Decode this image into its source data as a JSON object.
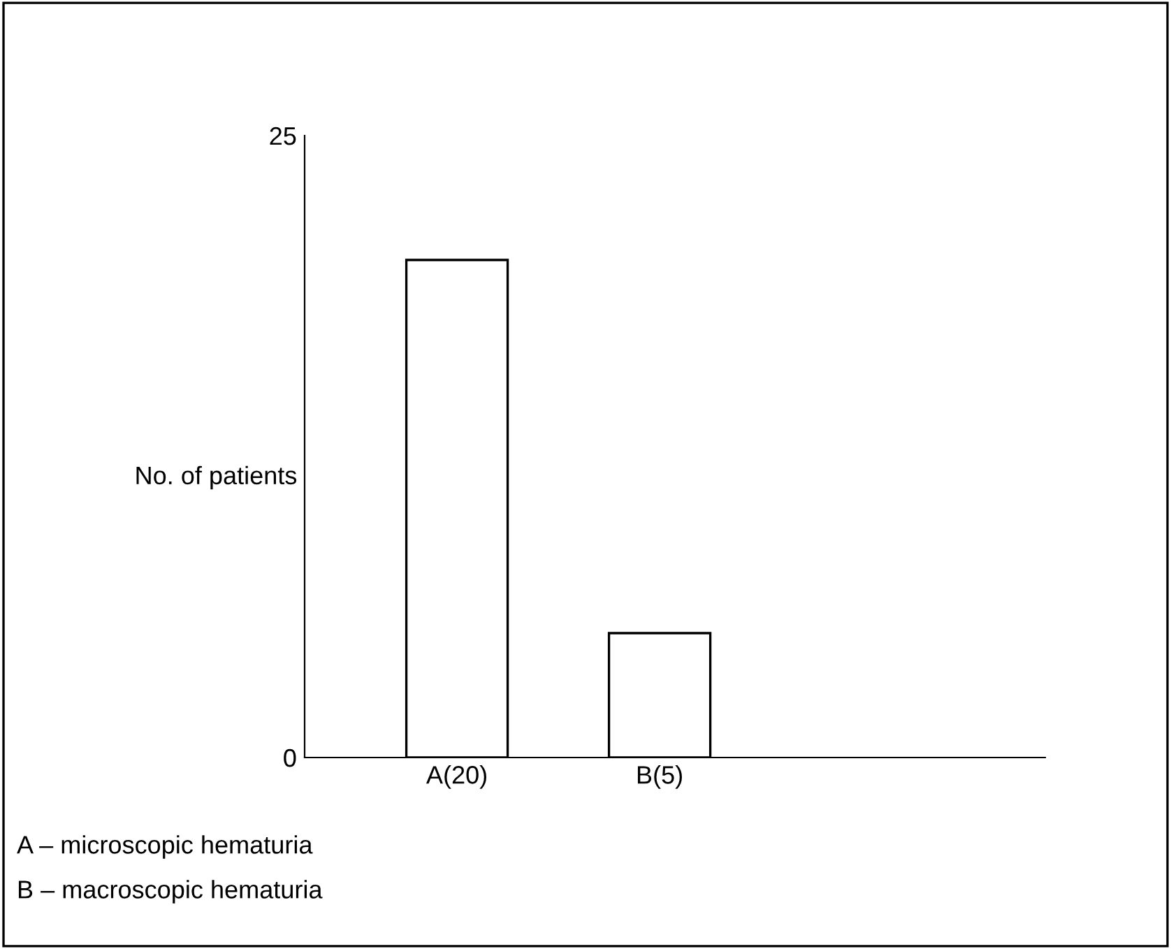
{
  "chart_data": {
    "type": "bar",
    "categories": [
      "A(20)",
      "B(5)"
    ],
    "values": [
      20,
      5
    ],
    "color": "#ffffff",
    "ylabel": "No. of patients",
    "ylim": [
      0,
      25
    ],
    "yticks": [
      0,
      25
    ],
    "grid": false,
    "annotations": [
      "A – microscopic hematuria",
      "B – macroscopic hematuria"
    ]
  }
}
